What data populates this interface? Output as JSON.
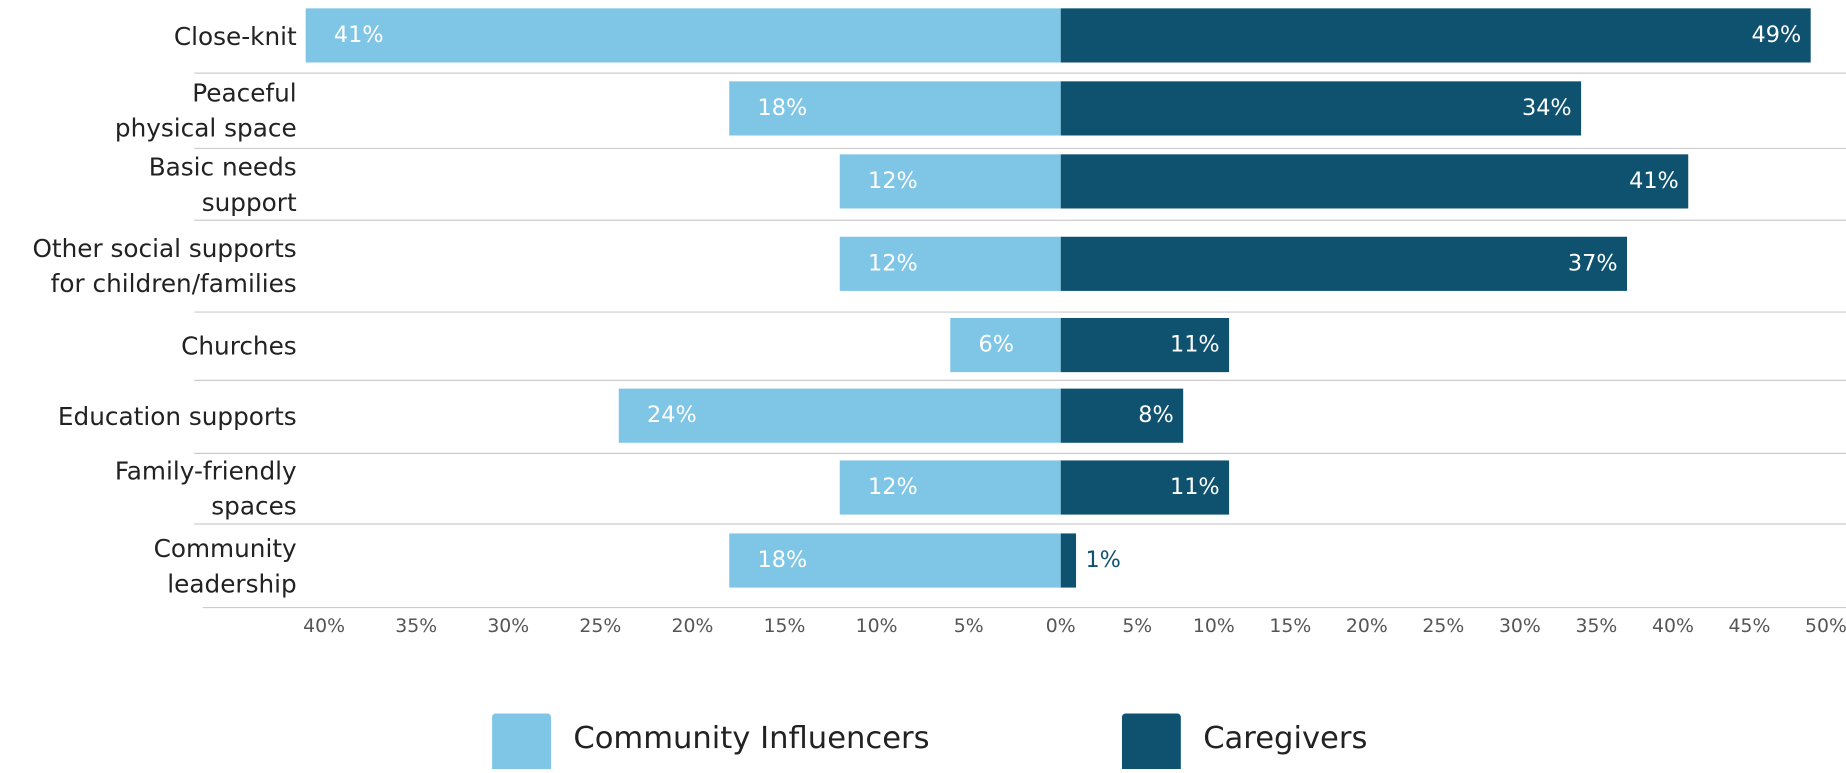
{
  "chart_data": {
    "type": "diverging_bar",
    "categories": [
      "Close-knit",
      "Peaceful\nphysical space",
      "Basic needs\nsupport",
      "Other social supports\nfor children/families",
      "Churches",
      "Education supports",
      "Family-friendly\nspaces",
      "Community\nleadership"
    ],
    "series": [
      {
        "name": "Community Influencers",
        "color": "#7fc6e6",
        "side": "left",
        "values": [
          41,
          18,
          12,
          12,
          6,
          24,
          12,
          18
        ],
        "value_labels": [
          "41%",
          "18%",
          "12%",
          "12%",
          "6%",
          "24%",
          "12%",
          "18%"
        ]
      },
      {
        "name": "Caregivers",
        "color": "#0e5270",
        "side": "right",
        "values": [
          49,
          34,
          41,
          37,
          11,
          8,
          11,
          1
        ],
        "value_labels": [
          "49%",
          "34%",
          "41%",
          "37%",
          "11%",
          "8%",
          "11%",
          "1%"
        ]
      }
    ],
    "left_xlim": [
      0,
      42
    ],
    "left_xticks": [
      {
        "value": 40,
        "label": "40%"
      },
      {
        "value": 35,
        "label": "35%"
      },
      {
        "value": 30,
        "label": "30%"
      },
      {
        "value": 25,
        "label": "25%"
      },
      {
        "value": 20,
        "label": "20%"
      },
      {
        "value": 15,
        "label": "15%"
      },
      {
        "value": 10,
        "label": "10%"
      },
      {
        "value": 5,
        "label": "5%"
      },
      {
        "value": 0,
        "label": "0%"
      }
    ],
    "right_xlim": [
      0,
      50
    ],
    "right_xticks": [
      {
        "value": 5,
        "label": "5%"
      },
      {
        "value": 10,
        "label": "10%"
      },
      {
        "value": 15,
        "label": "15%"
      },
      {
        "value": 20,
        "label": "20%"
      },
      {
        "value": 25,
        "label": "25%"
      },
      {
        "value": 30,
        "label": "30%"
      },
      {
        "value": 35,
        "label": "35%"
      },
      {
        "value": 40,
        "label": "40%"
      },
      {
        "value": 45,
        "label": "45%"
      },
      {
        "value": 50,
        "label": "50%"
      }
    ]
  }
}
